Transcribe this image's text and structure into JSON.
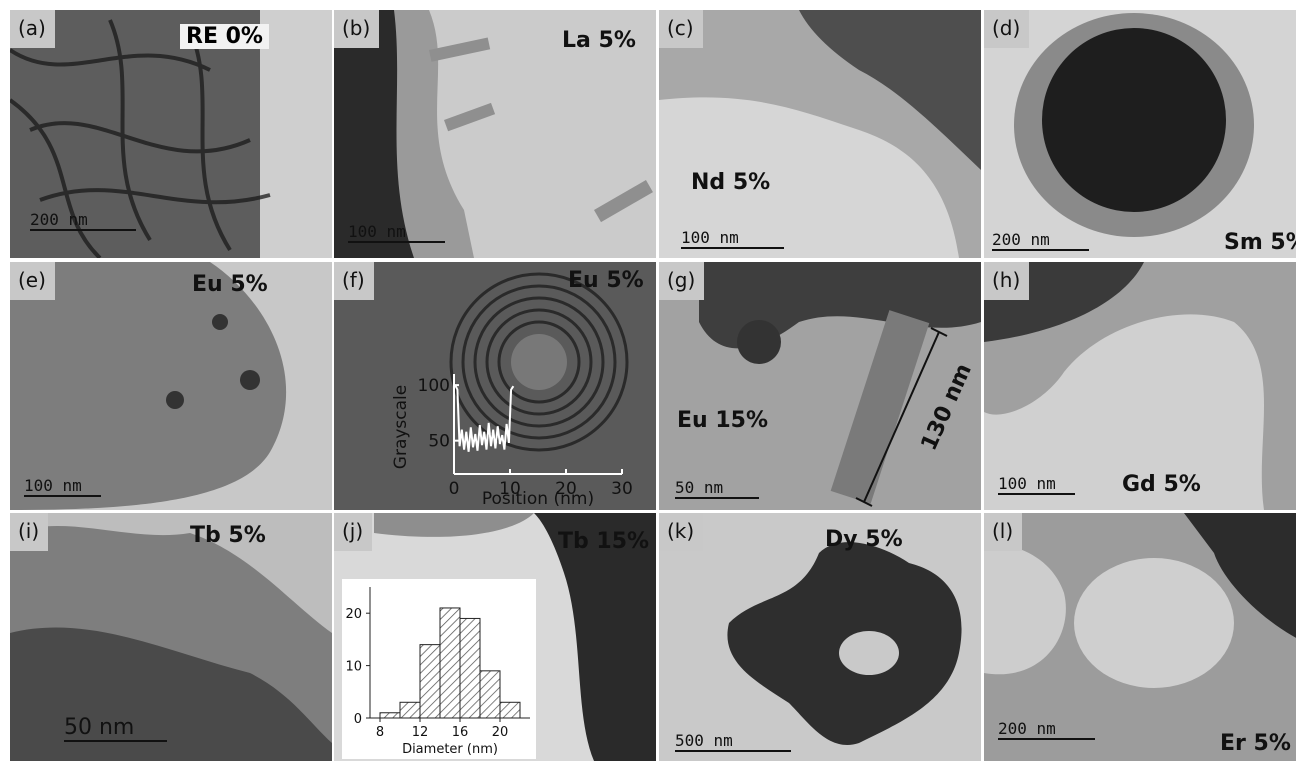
{
  "panels": [
    {
      "tag": "(a)",
      "sample": "RE 0%",
      "scale": "200  nm",
      "scale_frac": 0.33,
      "tone": "#5d5d5d"
    },
    {
      "tag": "(b)",
      "sample": "La 5%",
      "scale": "100  nm",
      "scale_frac": 0.3,
      "tone": "#9a9a9a"
    },
    {
      "tag": "(c)",
      "sample": "Nd 5%",
      "scale": "100  nm",
      "scale_frac": 0.32,
      "tone": "#a8a8a8"
    },
    {
      "tag": "(d)",
      "sample": "Sm 5%",
      "scale": "200  nm",
      "scale_frac": 0.3,
      "tone": "#8a8a8a"
    },
    {
      "tag": "(e)",
      "sample": "Eu 5%",
      "scale": "100  nm",
      "scale_frac": 0.24,
      "tone": "#7d7d7d"
    },
    {
      "tag": "(f)",
      "sample": "Eu 5%",
      "tone": "#5a5a5a"
    },
    {
      "tag": "(g)",
      "sample": "Eu 15%",
      "scale": "50  nm",
      "scale_frac": 0.26,
      "length_label": "130 nm",
      "tone": "#a2a2a2"
    },
    {
      "tag": "(h)",
      "sample": "Gd 5%",
      "scale": "100  nm",
      "scale_frac": 0.24,
      "tone": "#a0a0a0"
    },
    {
      "tag": "(i)",
      "sample": "Tb 5%",
      "scale": "50  nm",
      "scale_frac": 0.32,
      "tone": "#7e7e7e"
    },
    {
      "tag": "(j)",
      "sample": "Tb 15%",
      "tone": "#d9d9d9"
    },
    {
      "tag": "(k)",
      "sample": "Dy 5%",
      "scale": "500  nm",
      "scale_frac": 0.36,
      "tone": "#c9c9c9"
    },
    {
      "tag": "(l)",
      "sample": "Er 5%",
      "scale": "200  nm",
      "scale_frac": 0.3,
      "tone": "#9c9c9c"
    }
  ],
  "inset_f": {
    "ylabel": "Grayscale",
    "xlabel": "Position (nm)",
    "yticks": [
      "100",
      "50"
    ],
    "xticks": [
      "0",
      "10",
      "20",
      "30"
    ],
    "xlim": [
      0,
      30
    ],
    "ylim": [
      20,
      110
    ],
    "profile": [
      {
        "x": 0.2,
        "y": 100
      },
      {
        "x": 0.6,
        "y": 96
      },
      {
        "x": 1.0,
        "y": 45
      },
      {
        "x": 1.4,
        "y": 60
      },
      {
        "x": 1.8,
        "y": 42
      },
      {
        "x": 2.2,
        "y": 58
      },
      {
        "x": 2.6,
        "y": 40
      },
      {
        "x": 3.0,
        "y": 62
      },
      {
        "x": 3.4,
        "y": 44
      },
      {
        "x": 3.8,
        "y": 56
      },
      {
        "x": 4.2,
        "y": 41
      },
      {
        "x": 4.6,
        "y": 64
      },
      {
        "x": 5.0,
        "y": 46
      },
      {
        "x": 5.4,
        "y": 58
      },
      {
        "x": 5.8,
        "y": 42
      },
      {
        "x": 6.2,
        "y": 66
      },
      {
        "x": 6.6,
        "y": 45
      },
      {
        "x": 7.0,
        "y": 60
      },
      {
        "x": 7.4,
        "y": 43
      },
      {
        "x": 7.8,
        "y": 63
      },
      {
        "x": 8.2,
        "y": 47
      },
      {
        "x": 8.6,
        "y": 55
      },
      {
        "x": 9.0,
        "y": 42
      },
      {
        "x": 9.4,
        "y": 65
      },
      {
        "x": 9.8,
        "y": 48
      },
      {
        "x": 10.2,
        "y": 96
      },
      {
        "x": 10.6,
        "y": 99
      }
    ]
  },
  "inset_j": {
    "xlabel": "Diameter (nm)",
    "xticks": [
      "8",
      "12",
      "16",
      "20"
    ],
    "yticks": [
      "0",
      "10",
      "20"
    ],
    "xlim": [
      7,
      23
    ],
    "ylim": [
      0,
      25
    ],
    "bins": [
      {
        "x0": 8,
        "x1": 10,
        "count": 1
      },
      {
        "x0": 10,
        "x1": 12,
        "count": 3
      },
      {
        "x0": 12,
        "x1": 14,
        "count": 14
      },
      {
        "x0": 14,
        "x1": 16,
        "count": 21
      },
      {
        "x0": 16,
        "x1": 18,
        "count": 19
      },
      {
        "x0": 18,
        "x1": 20,
        "count": 9
      },
      {
        "x0": 20,
        "x1": 22,
        "count": 3
      }
    ]
  }
}
